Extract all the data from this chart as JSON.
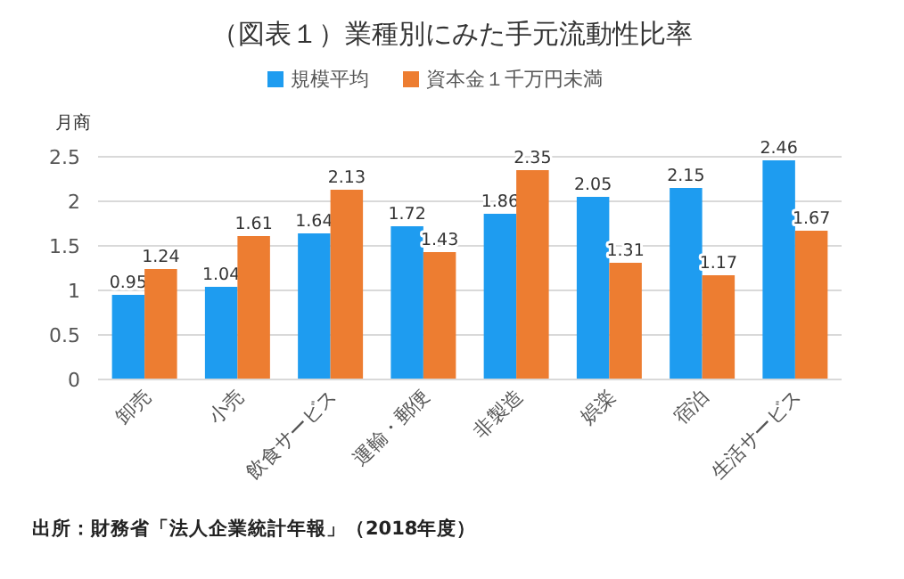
{
  "chart_data": {
    "type": "bar",
    "title": "（図表１）業種別にみた手元流動性比率",
    "ylabel": "月商",
    "categories": [
      "卸売",
      "小売",
      "飲食サービス",
      "運輸・郵便",
      "非製造",
      "娯楽",
      "宿泊",
      "生活サービス"
    ],
    "series": [
      {
        "name": "規模平均",
        "color": "#1e9cf0",
        "values": [
          0.95,
          1.04,
          1.64,
          1.72,
          1.86,
          2.05,
          2.15,
          2.46
        ]
      },
      {
        "name": "資本金１千万円未満",
        "color": "#ed7d31",
        "values": [
          1.24,
          1.61,
          2.13,
          1.43,
          2.35,
          1.31,
          1.17,
          1.67
        ]
      }
    ],
    "ylim": [
      0,
      2.5
    ],
    "yticks": [
      0,
      0.5,
      1,
      1.5,
      2,
      2.5
    ],
    "grid": "y",
    "legend": "top",
    "data_labels": true,
    "annotations": [
      "出所：財務省「法人企業統計年報」（2018年度）"
    ]
  }
}
